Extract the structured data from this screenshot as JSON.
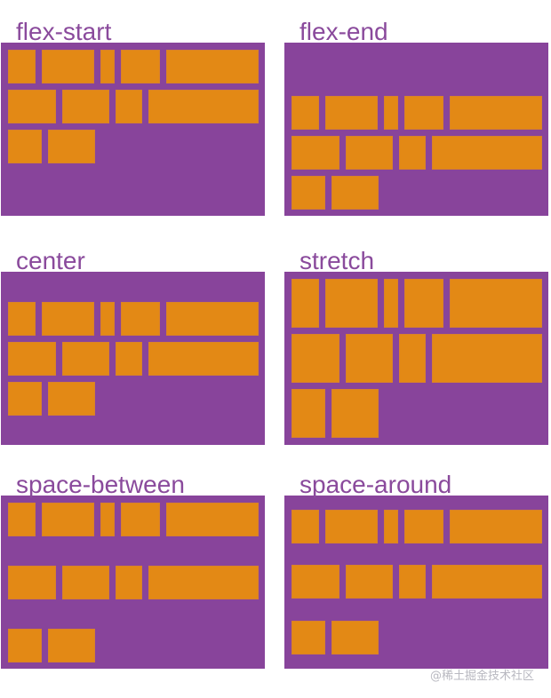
{
  "panels": [
    {
      "label": "flex-start",
      "align_content": "flex-start"
    },
    {
      "label": "flex-end",
      "align_content": "flex-end"
    },
    {
      "label": "center",
      "align_content": "center"
    },
    {
      "label": "stretch",
      "align_content": "stretch"
    },
    {
      "label": "space-between",
      "align_content": "space-between"
    },
    {
      "label": "space-around",
      "align_content": "space-around"
    }
  ],
  "item_widths": [
    31,
    59,
    16,
    44,
    104,
    54,
    53,
    30,
    124,
    38,
    53
  ],
  "colors": {
    "container": "#88449b",
    "item": "#e38915",
    "label": "#8a4a9c"
  },
  "watermark": "@稀土掘金技术社区"
}
